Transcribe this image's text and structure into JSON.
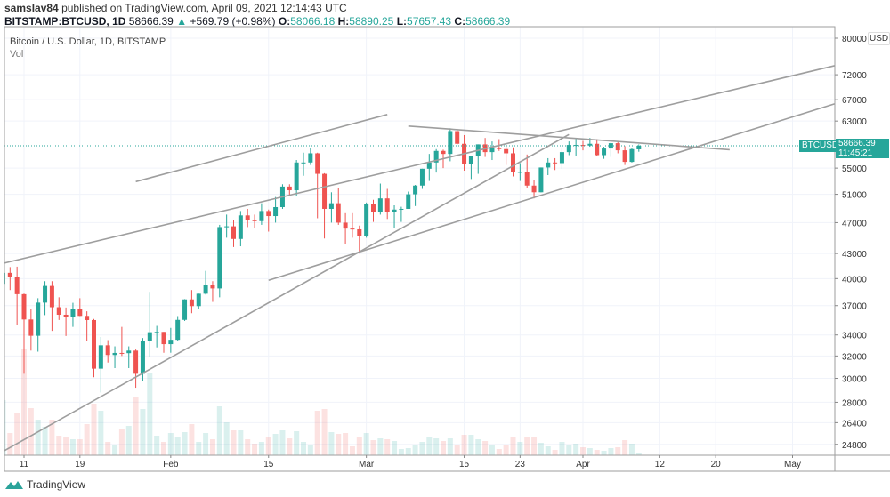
{
  "header": {
    "author": "samslav84",
    "published_text": "published on TradingView.com, April 09, 2021 12:14:43 UTC",
    "symbol": "BITSTAMP:BTCUSD, 1D",
    "last": "58666.39",
    "change": "+569.79 (+0.98%)",
    "o_label": "O:",
    "o": "58066.18",
    "h_label": "H:",
    "h": "58890.25",
    "l_label": "L:",
    "l": "57657.43",
    "c_label": "C:",
    "c": "58666.39"
  },
  "legend": {
    "title": "Bitcoin / U.S. Dollar, 1D, BITSTAMP",
    "volume": "Vol"
  },
  "price_axis": {
    "currency": "USD",
    "symbol_tag": "BTCUSD",
    "price_tag": "58666.39",
    "countdown": "11:45:21"
  },
  "brand": "TradingView",
  "colors": {
    "up": "#26a69a",
    "down": "#ef5350",
    "line": "#9e9e9e",
    "grid": "#f0f3fa"
  },
  "chart_data": {
    "type": "candlestick",
    "title": "Bitcoin / U.S. Dollar, 1D, BITSTAMP",
    "y_scale": "log",
    "ylim": [
      24000,
      82000
    ],
    "xlim": [
      "2021-01-08",
      "2021-05-07"
    ],
    "grid": true,
    "y_ticks": [
      "80000",
      "72000",
      "67000",
      "63000",
      "55000",
      "51000",
      "47000",
      "43000",
      "40000",
      "37000",
      "34000",
      "32000",
      "30000",
      "28000",
      "26400",
      "24800"
    ],
    "x_ticks": [
      {
        "date": "2021-01-11",
        "label": "11"
      },
      {
        "date": "2021-01-19",
        "label": "19"
      },
      {
        "date": "2021-02-01",
        "label": "Feb"
      },
      {
        "date": "2021-02-15",
        "label": "15"
      },
      {
        "date": "2021-03-01",
        "label": "Mar"
      },
      {
        "date": "2021-03-15",
        "label": "15"
      },
      {
        "date": "2021-03-23",
        "label": "23"
      },
      {
        "date": "2021-04-01",
        "label": "Apr"
      },
      {
        "date": "2021-04-12",
        "label": "12"
      },
      {
        "date": "2021-04-20",
        "label": "20"
      },
      {
        "date": "2021-05-01",
        "label": "May"
      }
    ],
    "last_price": 58666.39,
    "candles_fields": [
      "date",
      "open",
      "high",
      "low",
      "close"
    ],
    "candles": [
      [
        "2021-01-08",
        39400,
        41950,
        36500,
        40670
      ],
      [
        "2021-01-09",
        40670,
        41350,
        38700,
        40240
      ],
      [
        "2021-01-10",
        40240,
        41400,
        35000,
        38240
      ],
      [
        "2021-01-11",
        38240,
        38300,
        30400,
        35550
      ],
      [
        "2021-01-12",
        35550,
        36600,
        32500,
        33920
      ],
      [
        "2021-01-13",
        33920,
        37800,
        32400,
        37320
      ],
      [
        "2021-01-14",
        37320,
        39700,
        36000,
        39160
      ],
      [
        "2021-01-15",
        39160,
        39700,
        34400,
        36830
      ],
      [
        "2021-01-16",
        36830,
        37900,
        35500,
        36040
      ],
      [
        "2021-01-17",
        36040,
        36800,
        33900,
        35800
      ],
      [
        "2021-01-18",
        35800,
        37300,
        34800,
        36630
      ],
      [
        "2021-01-19",
        36630,
        37800,
        35900,
        35920
      ],
      [
        "2021-01-20",
        35920,
        36400,
        33400,
        35490
      ],
      [
        "2021-01-21",
        35490,
        35600,
        30100,
        30850
      ],
      [
        "2021-01-22",
        30850,
        33800,
        28800,
        33000
      ],
      [
        "2021-01-23",
        33000,
        33500,
        31400,
        32090
      ],
      [
        "2021-01-24",
        32090,
        32900,
        30900,
        32280
      ],
      [
        "2021-01-25",
        32280,
        34800,
        32000,
        32260
      ],
      [
        "2021-01-26",
        32260,
        32900,
        30900,
        32500
      ],
      [
        "2021-01-27",
        32500,
        32600,
        29200,
        30400
      ],
      [
        "2021-01-28",
        30400,
        33700,
        29800,
        33400
      ],
      [
        "2021-01-29",
        33400,
        38500,
        31900,
        34270
      ],
      [
        "2021-01-30",
        34270,
        34900,
        32800,
        34300
      ],
      [
        "2021-01-31",
        34300,
        34300,
        32300,
        33110
      ],
      [
        "2021-02-01",
        33110,
        34700,
        32300,
        33530
      ],
      [
        "2021-02-02",
        33530,
        35900,
        33400,
        35510
      ],
      [
        "2021-02-03",
        35510,
        37700,
        35400,
        37670
      ],
      [
        "2021-02-04",
        37670,
        38700,
        36200,
        36950
      ],
      [
        "2021-02-05",
        36950,
        38300,
        36600,
        38290
      ],
      [
        "2021-02-06",
        38290,
        40900,
        38200,
        39250
      ],
      [
        "2021-02-07",
        39250,
        39700,
        37400,
        38880
      ],
      [
        "2021-02-08",
        38880,
        46700,
        37900,
        46400
      ],
      [
        "2021-02-09",
        46400,
        48100,
        45000,
        46500
      ],
      [
        "2021-02-10",
        46500,
        47300,
        43800,
        44840
      ],
      [
        "2021-02-11",
        44840,
        48600,
        43900,
        47990
      ],
      [
        "2021-02-12",
        47990,
        48900,
        46400,
        47400
      ],
      [
        "2021-02-13",
        47400,
        48100,
        46300,
        47200
      ],
      [
        "2021-02-14",
        47200,
        49700,
        46700,
        48600
      ],
      [
        "2021-02-15",
        48600,
        48800,
        45800,
        47900
      ],
      [
        "2021-02-16",
        47900,
        50600,
        47000,
        49150
      ],
      [
        "2021-02-17",
        49150,
        52500,
        48900,
        52150
      ],
      [
        "2021-02-18",
        52150,
        52500,
        50800,
        51600
      ],
      [
        "2021-02-19",
        51600,
        56300,
        50700,
        55900
      ],
      [
        "2021-02-20",
        55900,
        57500,
        53800,
        55900
      ],
      [
        "2021-02-21",
        55900,
        58300,
        55500,
        57400
      ],
      [
        "2021-02-22",
        57400,
        57500,
        47600,
        54100
      ],
      [
        "2021-02-23",
        54100,
        54200,
        44900,
        48900
      ],
      [
        "2021-02-24",
        48900,
        51300,
        47000,
        49700
      ],
      [
        "2021-02-25",
        49700,
        52000,
        46700,
        47000
      ],
      [
        "2021-02-26",
        47000,
        48300,
        44200,
        46200
      ],
      [
        "2021-02-27",
        46200,
        48300,
        45000,
        46100
      ],
      [
        "2021-02-28",
        46100,
        46600,
        43000,
        45200
      ],
      [
        "2021-03-01",
        45200,
        49800,
        45000,
        49600
      ],
      [
        "2021-03-02",
        49600,
        50200,
        47100,
        48400
      ],
      [
        "2021-03-03",
        48400,
        52600,
        48100,
        50400
      ],
      [
        "2021-03-04",
        50400,
        51800,
        47500,
        48400
      ],
      [
        "2021-03-05",
        48400,
        49400,
        46300,
        48800
      ],
      [
        "2021-03-06",
        48800,
        49200,
        47100,
        48900
      ],
      [
        "2021-03-07",
        48900,
        51400,
        48900,
        51000
      ],
      [
        "2021-03-08",
        51000,
        52400,
        49300,
        52300
      ],
      [
        "2021-03-09",
        52300,
        54900,
        51800,
        54900
      ],
      [
        "2021-03-10",
        54900,
        57300,
        53000,
        55900
      ],
      [
        "2021-03-11",
        55900,
        58100,
        54300,
        57800
      ],
      [
        "2021-03-12",
        57800,
        58000,
        55000,
        57300
      ],
      [
        "2021-03-13",
        57300,
        61700,
        56100,
        61200
      ],
      [
        "2021-03-14",
        61200,
        61600,
        58900,
        59000
      ],
      [
        "2021-03-15",
        59000,
        60500,
        54600,
        55600
      ],
      [
        "2021-03-16",
        55600,
        56900,
        53300,
        56900
      ],
      [
        "2021-03-17",
        56900,
        58900,
        54100,
        58900
      ],
      [
        "2021-03-18",
        58900,
        60000,
        56800,
        57600
      ],
      [
        "2021-03-19",
        57600,
        59400,
        56300,
        58300
      ],
      [
        "2021-03-20",
        58300,
        59800,
        57800,
        58100
      ],
      [
        "2021-03-21",
        58100,
        58500,
        55500,
        57400
      ],
      [
        "2021-03-22",
        57400,
        58400,
        53700,
        54400
      ],
      [
        "2021-03-23",
        54400,
        55800,
        53000,
        54400
      ],
      [
        "2021-03-24",
        54400,
        57200,
        52000,
        52300
      ],
      [
        "2021-03-25",
        52300,
        53200,
        50400,
        51300
      ],
      [
        "2021-03-26",
        51300,
        55100,
        51300,
        55100
      ],
      [
        "2021-03-27",
        55100,
        56600,
        53900,
        55900
      ],
      [
        "2021-03-28",
        55900,
        56600,
        54700,
        55800
      ],
      [
        "2021-03-29",
        55800,
        58400,
        54900,
        57600
      ],
      [
        "2021-03-30",
        57600,
        59400,
        57100,
        58800
      ],
      [
        "2021-03-31",
        58800,
        59800,
        56900,
        58800
      ],
      [
        "2021-04-01",
        58800,
        59500,
        57900,
        58700
      ],
      [
        "2021-04-02",
        58700,
        60000,
        58500,
        59000
      ],
      [
        "2021-04-03",
        59000,
        59800,
        57000,
        57100
      ],
      [
        "2021-04-04",
        57100,
        58500,
        56500,
        58200
      ],
      [
        "2021-04-05",
        58200,
        59200,
        56800,
        59100
      ],
      [
        "2021-04-06",
        59100,
        59400,
        57400,
        57900
      ],
      [
        "2021-04-07",
        57900,
        58600,
        55500,
        56000
      ],
      [
        "2021-04-08",
        56000,
        58200,
        55900,
        58100
      ],
      [
        "2021-04-09",
        58066.18,
        58890.25,
        57657.43,
        58666.39
      ]
    ],
    "volume_relative": [
      62,
      25,
      47,
      120,
      53,
      40,
      32,
      40,
      22,
      20,
      18,
      18,
      35,
      58,
      50,
      15,
      12,
      30,
      33,
      65,
      52,
      92,
      22,
      15,
      25,
      21,
      26,
      35,
      15,
      25,
      18,
      55,
      37,
      28,
      28,
      18,
      13,
      15,
      20,
      24,
      28,
      19,
      27,
      15,
      11,
      50,
      52,
      26,
      24,
      25,
      10,
      20,
      25,
      17,
      19,
      18,
      16,
      7,
      8,
      12,
      15,
      20,
      19,
      16,
      19,
      11,
      23,
      23,
      18,
      16,
      11,
      7,
      11,
      20,
      15,
      21,
      20,
      14,
      10,
      6,
      15,
      11,
      13,
      9,
      8,
      6,
      5,
      8,
      9,
      17,
      13,
      3
    ],
    "trend_lines": [
      {
        "from": [
          "2021-01-08",
          41800
        ],
        "to": [
          "2021-05-07",
          73900
        ]
      },
      {
        "from": [
          "2021-01-08",
          24300
        ],
        "to": [
          "2021-03-30",
          60600
        ]
      },
      {
        "from": [
          "2021-01-27",
          52900
        ],
        "to": [
          "2021-03-04",
          64200
        ]
      },
      {
        "from": [
          "2021-03-07",
          62100
        ],
        "to": [
          "2021-04-22",
          58000
        ]
      },
      {
        "from": [
          "2021-02-15",
          39800
        ],
        "to": [
          "2021-05-07",
          66200
        ]
      }
    ]
  }
}
